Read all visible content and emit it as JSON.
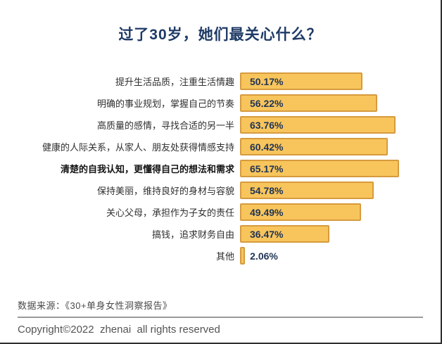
{
  "title": "过了30岁，她们最关心什么？",
  "colors": {
    "title_text": "#1e3a66",
    "bar_fill": "#f8c55c",
    "bar_border": "#d69b3e",
    "value_text": "#1f3356"
  },
  "chart_data": {
    "type": "bar",
    "orientation": "horizontal",
    "title": "过了30岁，她们最关心什么？",
    "categories": [
      "提升生活品质，注重生活情趣",
      "明确的事业规划，掌握自己的节奏",
      "高质量的感情，寻找合适的另一半",
      "健康的人际关系，从家人、朋友处获得情感支持",
      "清楚的自我认知，更懂得自己的想法和需求",
      "保持美丽，维持良好的身材与容貌",
      "关心父母，承担作为子女的责任",
      "搞钱，追求财务自由",
      "其他"
    ],
    "values": [
      50.17,
      56.22,
      63.76,
      60.42,
      65.17,
      54.78,
      49.49,
      36.47,
      2.06
    ],
    "value_labels": [
      "50.17%",
      "56.22%",
      "63.76%",
      "60.42%",
      "65.17%",
      "54.78%",
      "49.49%",
      "36.47%",
      "2.06%"
    ],
    "emphasized_category_index": 4,
    "xlabel": "",
    "ylabel": "",
    "xlim": [
      0,
      70
    ],
    "grid": false,
    "legend": false
  },
  "footer": {
    "source": "数据来源：《30+单身女性洞察报告》",
    "copyright": "Copyright©2022  zhenai  all rights reserved"
  }
}
